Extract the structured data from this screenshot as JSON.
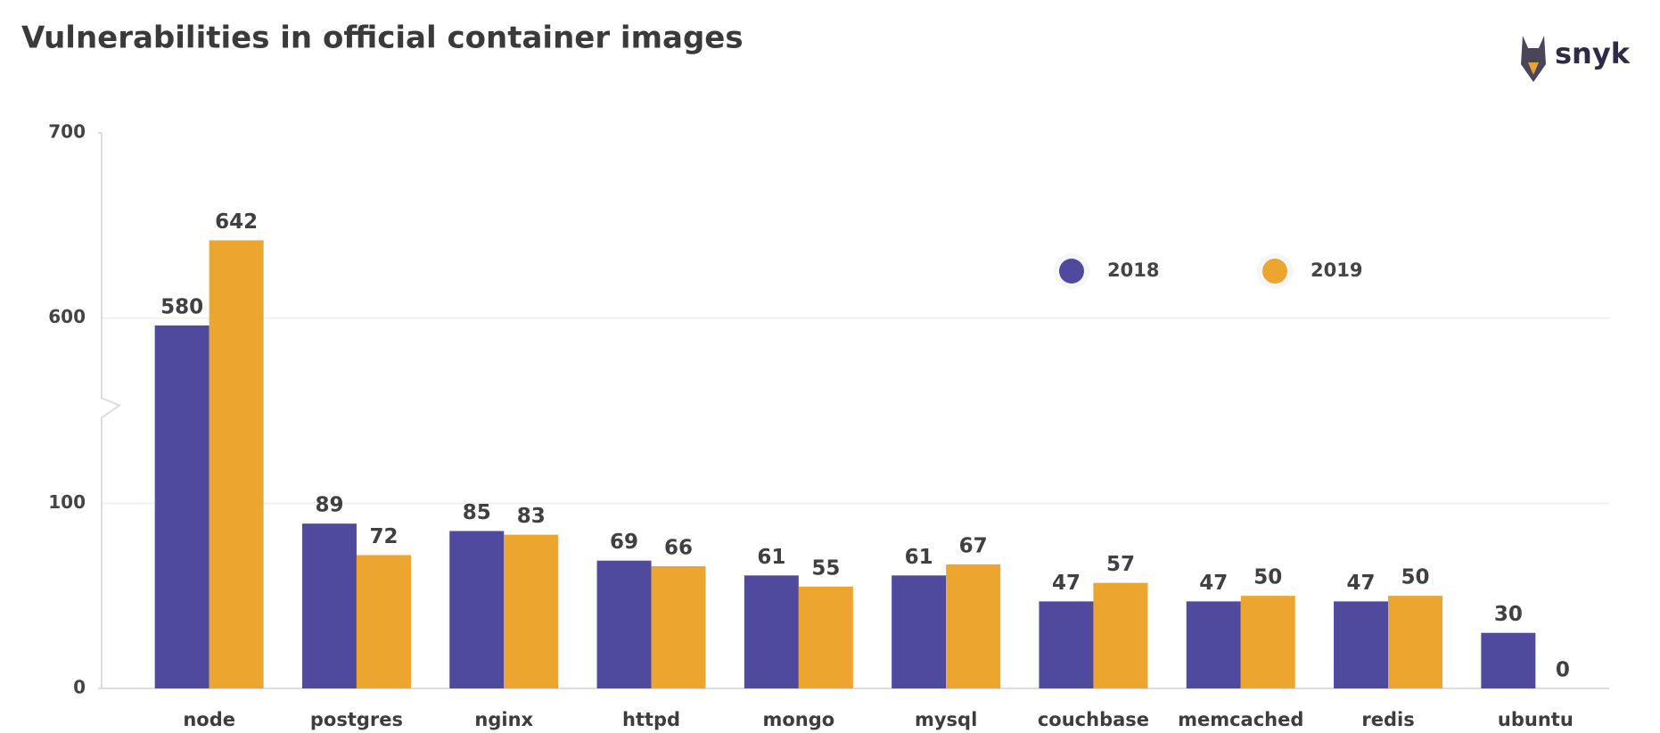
{
  "chart_data": {
    "type": "bar",
    "title": "Vulnerabilities in official container images",
    "logo": "snyk",
    "categories": [
      "node",
      "postgres",
      "nginx",
      "httpd",
      "mongo",
      "mysql",
      "couchbase",
      "memcached",
      "redis",
      "ubuntu"
    ],
    "series": [
      {
        "name": "2018",
        "color": "#504a9f",
        "values": [
          580,
          89,
          85,
          69,
          61,
          61,
          47,
          47,
          47,
          30
        ]
      },
      {
        "name": "2019",
        "color": "#eca52f",
        "values": [
          642,
          72,
          83,
          66,
          55,
          67,
          57,
          50,
          50,
          0
        ]
      }
    ],
    "ylim": [
      0,
      700
    ],
    "yticks": [
      0,
      100,
      600,
      700
    ],
    "axis_break": true,
    "grid": true,
    "legend": "top-right"
  }
}
